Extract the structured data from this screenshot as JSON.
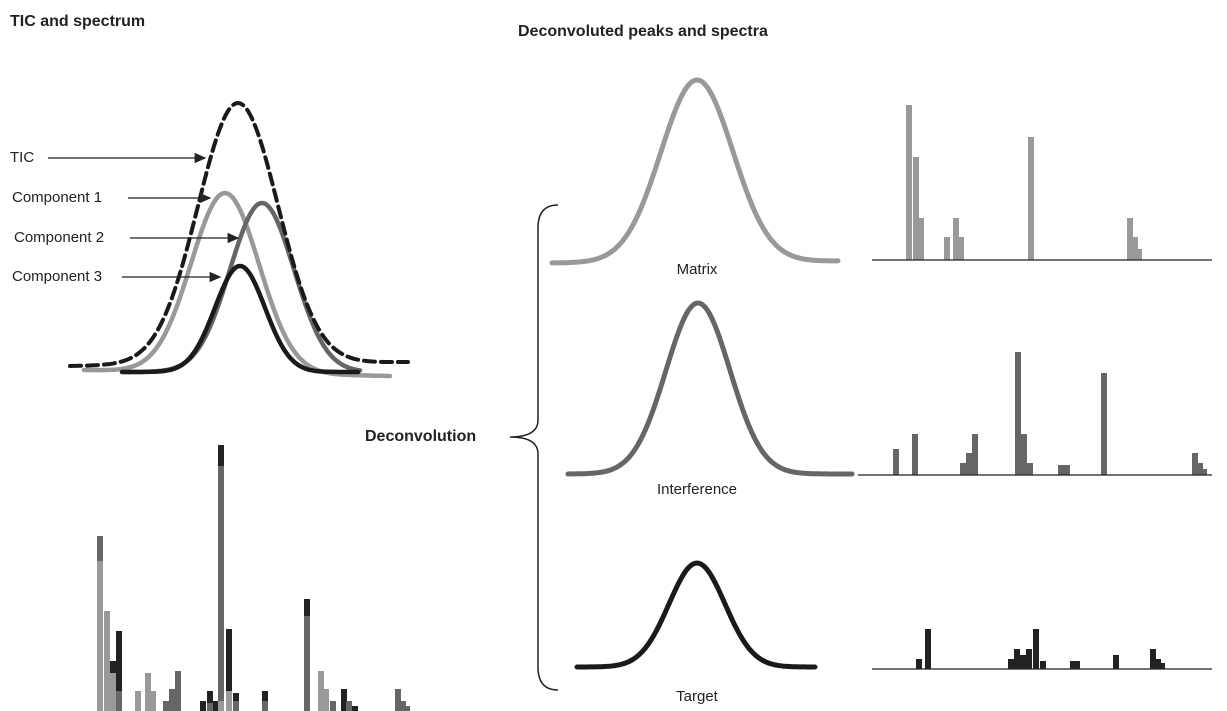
{
  "header": {
    "left_title": "TIC and spectrum",
    "right_title": "Deconvoluted peaks and spectra"
  },
  "labels": {
    "tic": "TIC",
    "component_1": "Component 1",
    "component_2": "Component 2",
    "component_3": "Component 3",
    "deconvolution": "Deconvolution"
  },
  "panels": [
    {
      "label": "Matrix"
    },
    {
      "label": "Interference"
    },
    {
      "label": "Target"
    }
  ]
}
